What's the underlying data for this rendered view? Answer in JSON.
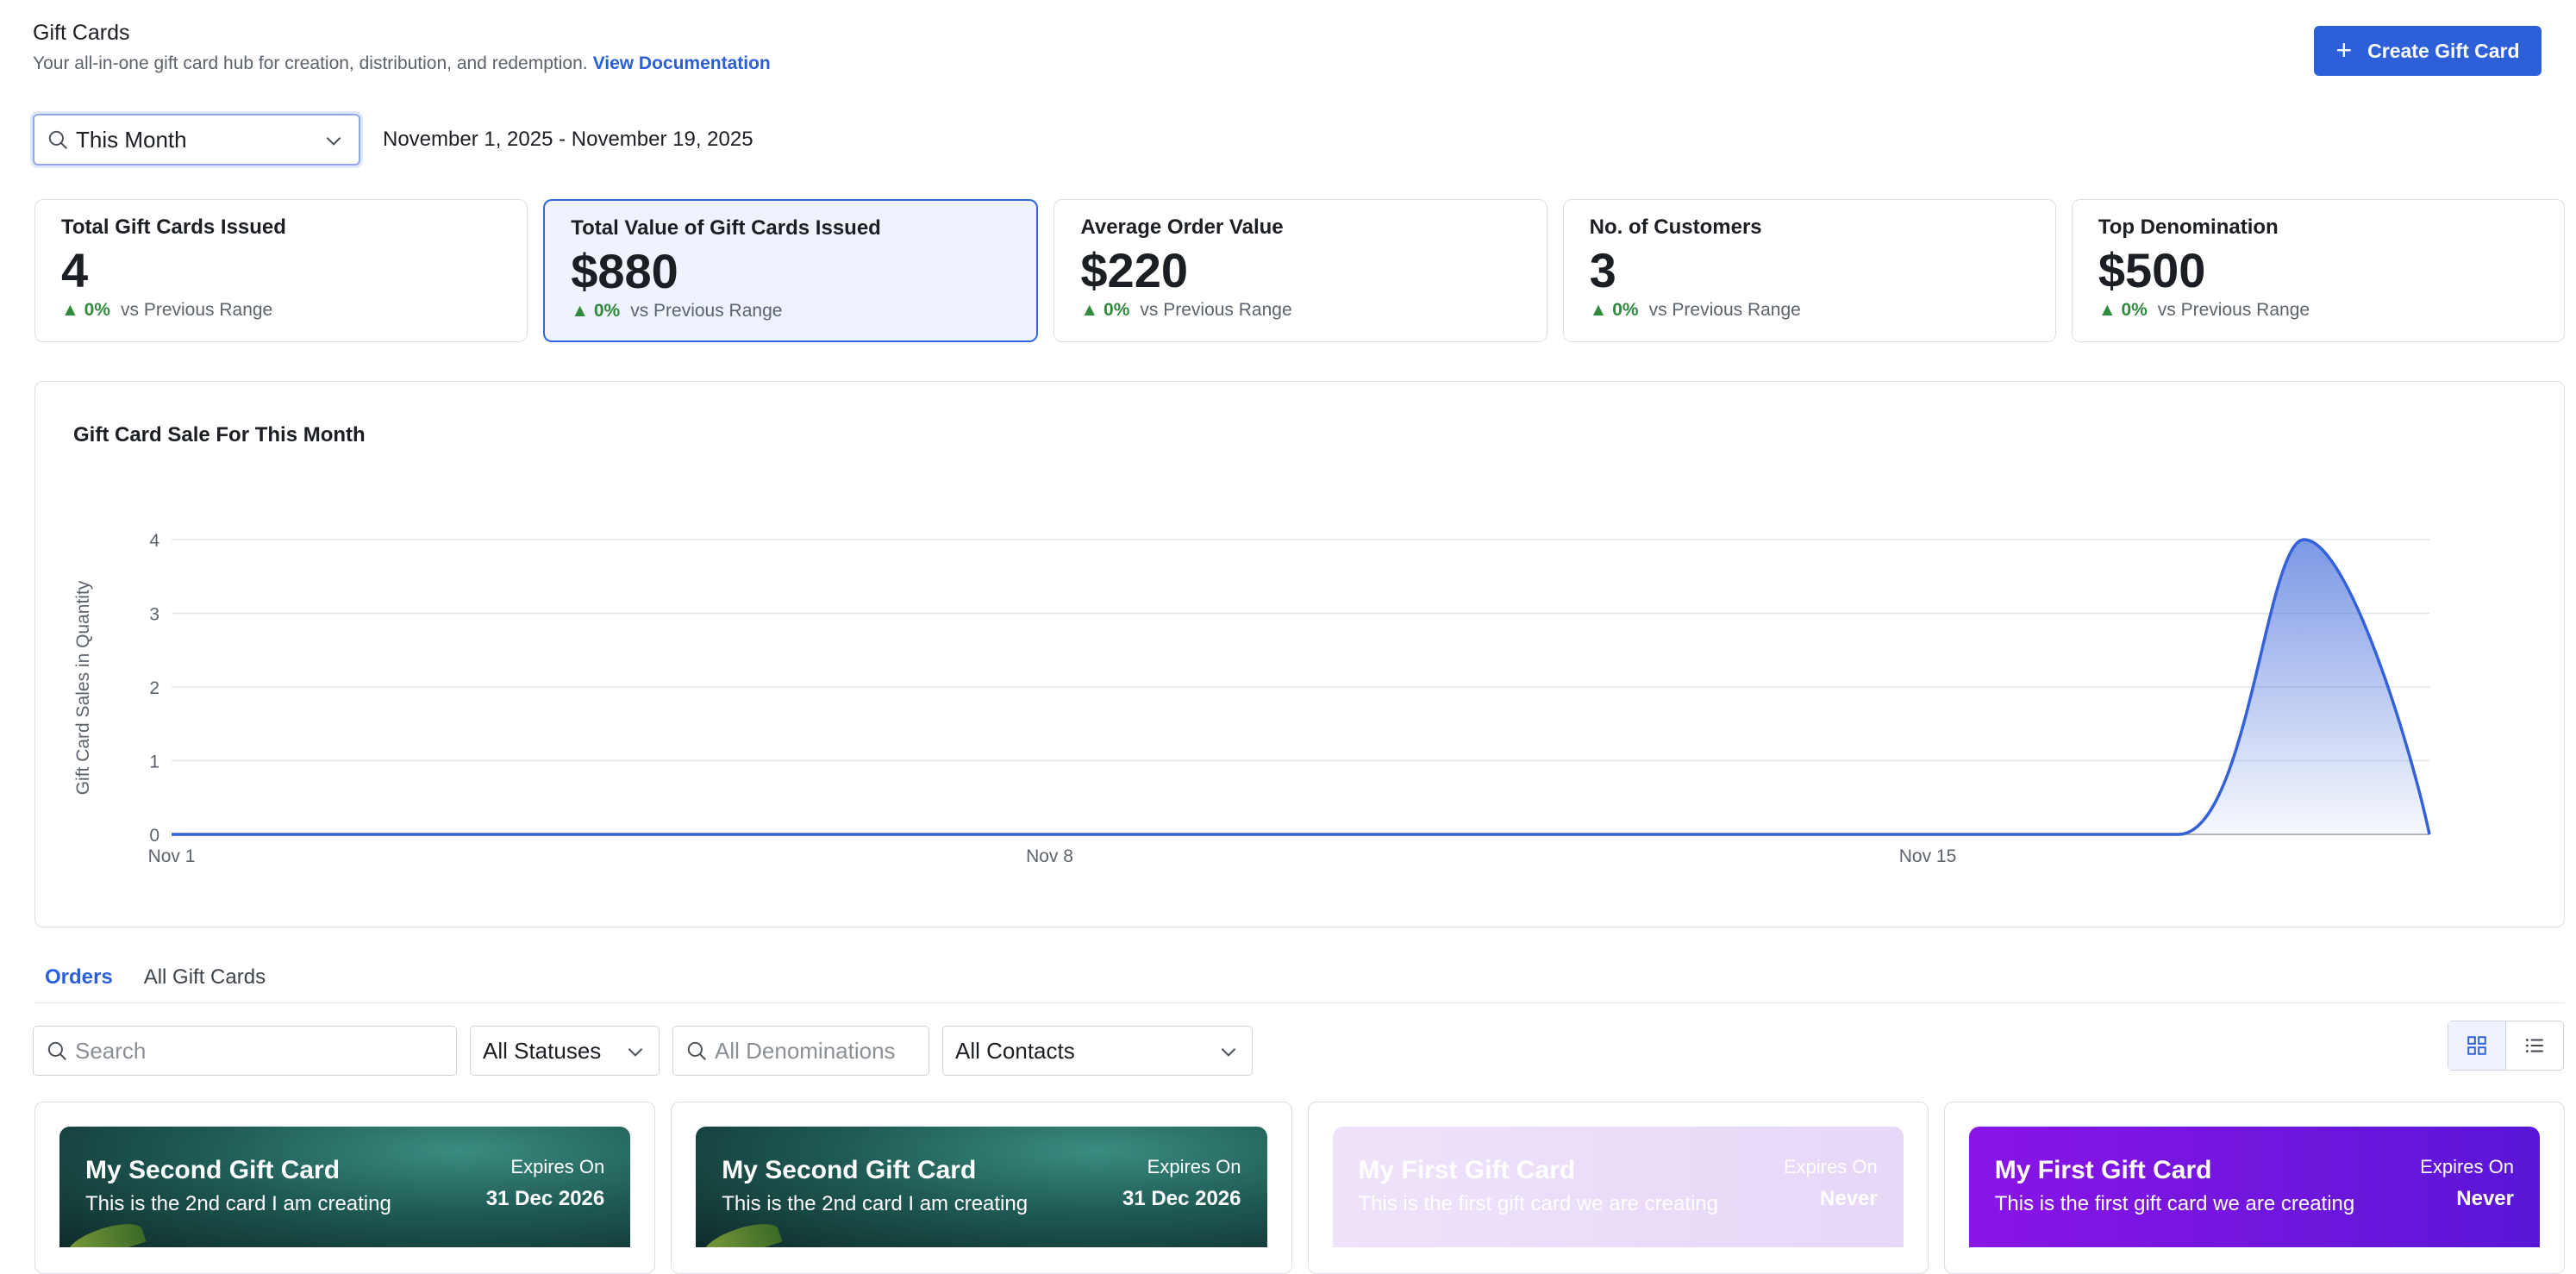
{
  "header": {
    "title": "Gift Cards",
    "subtitle": "Your all-in-one gift card hub for creation, distribution, and redemption.",
    "doc_link": "View Documentation",
    "create_button": "Create Gift Card"
  },
  "range": {
    "selected": "This Month",
    "dates": "November 1, 2025 - November 19, 2025"
  },
  "stats": [
    {
      "label": "Total Gift Cards Issued",
      "value": "4",
      "change": "0%",
      "compare": "vs Previous Range"
    },
    {
      "label": "Total Value of Gift Cards Issued",
      "value": "$880",
      "change": "0%",
      "compare": "vs Previous Range"
    },
    {
      "label": "Average Order Value",
      "value": "$220",
      "change": "0%",
      "compare": "vs Previous Range"
    },
    {
      "label": "No. of Customers",
      "value": "3",
      "change": "0%",
      "compare": "vs Previous Range"
    },
    {
      "label": "Top Denomination",
      "value": "$500",
      "change": "0%",
      "compare": "vs Previous Range"
    }
  ],
  "chart_title": "Gift Card Sale For This Month",
  "chart_data": {
    "type": "area",
    "title": "Gift Card Sale For This Month",
    "xlabel": "",
    "ylabel": "Gift Card Sales in Quantity",
    "x": [
      1,
      2,
      3,
      4,
      5,
      6,
      7,
      8,
      9,
      10,
      11,
      12,
      13,
      14,
      15,
      16,
      17,
      18,
      19
    ],
    "x_tick_labels": [
      {
        "x": 1,
        "label": "Nov 1"
      },
      {
        "x": 8,
        "label": "Nov 8"
      },
      {
        "x": 15,
        "label": "Nov 15"
      }
    ],
    "y_ticks": [
      0,
      1,
      2,
      3,
      4
    ],
    "ylim": [
      0,
      4
    ],
    "xlim": [
      1,
      19
    ],
    "series": [
      {
        "values": [
          0,
          0,
          0,
          0,
          0,
          0,
          0,
          0,
          0,
          0,
          0,
          0,
          0,
          0,
          0,
          0,
          0,
          4,
          0
        ]
      }
    ],
    "color": "#3561d8",
    "grid": true
  },
  "tabs": [
    "Orders",
    "All Gift Cards"
  ],
  "filters": {
    "search_placeholder": "Search",
    "status": "All Statuses",
    "denom_placeholder": "All Denominations",
    "contacts": "All Contacts"
  },
  "cards": [
    {
      "name": "My Second Gift Card",
      "desc": "This is the 2nd card I am creating",
      "expires_label": "Expires On",
      "expires": "31 Dec 2026",
      "style": "teal"
    },
    {
      "name": "My Second Gift Card",
      "desc": "This is the 2nd card I am creating",
      "expires_label": "Expires On",
      "expires": "31 Dec 2026",
      "style": "teal"
    },
    {
      "name": "My First Gift Card",
      "desc": "This is the first gift card we are creating",
      "expires_label": "Expires On",
      "expires": "Never",
      "style": "lilac"
    },
    {
      "name": "My First Gift Card",
      "desc": "This is the first gift card we are creating",
      "expires_label": "Expires On",
      "expires": "Never",
      "style": "purple"
    }
  ]
}
